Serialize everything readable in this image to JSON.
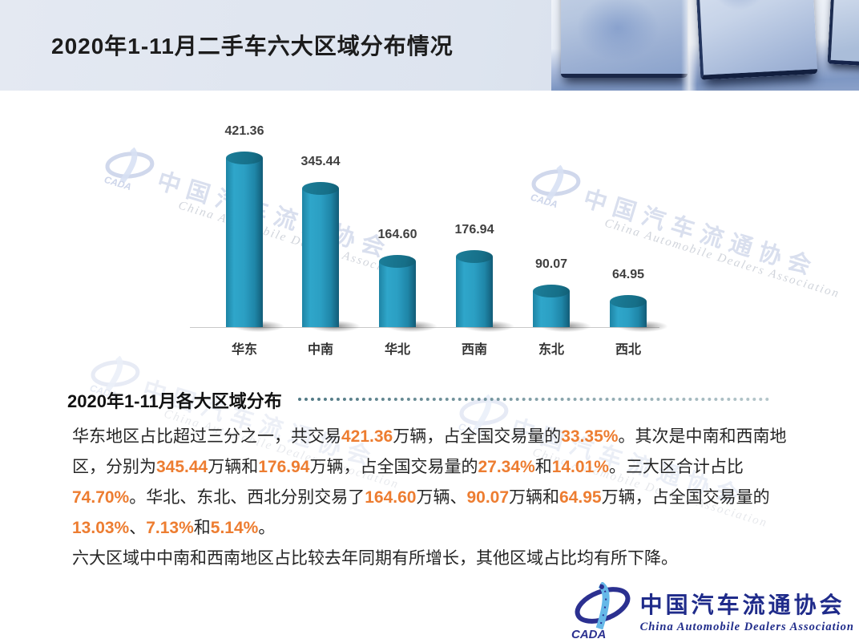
{
  "slide": {
    "title": "2020年1-11月二手车六大区域分布情况"
  },
  "chart_data": {
    "type": "bar",
    "categories": [
      "华东",
      "中南",
      "华北",
      "西南",
      "东北",
      "西北"
    ],
    "values": [
      421.36,
      345.44,
      164.6,
      176.94,
      90.07,
      64.95
    ],
    "value_labels": [
      "421.36",
      "345.44",
      "164.60",
      "176.94",
      "90.07",
      "64.95"
    ],
    "title": "",
    "xlabel": "",
    "ylabel": "",
    "unit": "万辆",
    "ylim": [
      0,
      450
    ],
    "grid": false,
    "legend_position": "none",
    "data_labels_shown": true,
    "bar_color": "#2596BA",
    "bar_style": "3d-cylinder"
  },
  "section": {
    "heading": "2020年1-11月各大区域分布"
  },
  "body_text": {
    "segments": [
      {
        "t": "华东地区占比超过三分之一，共交易",
        "h": false
      },
      {
        "t": "421.36",
        "h": true
      },
      {
        "t": "万辆，占全国交易量的",
        "h": false
      },
      {
        "t": "33.35%",
        "h": true
      },
      {
        "t": "。其次是中南和西南地区，分别为",
        "h": false
      },
      {
        "t": "345.44",
        "h": true
      },
      {
        "t": "万辆和",
        "h": false
      },
      {
        "t": "176.94",
        "h": true
      },
      {
        "t": "万辆，占全国交易量的",
        "h": false
      },
      {
        "t": "27.34%",
        "h": true
      },
      {
        "t": "和",
        "h": false
      },
      {
        "t": "14.01%",
        "h": true
      },
      {
        "t": "。三大区合计占比",
        "h": false
      },
      {
        "t": "74.70%",
        "h": true
      },
      {
        "t": "。华北、东北、西北分别交易了",
        "h": false
      },
      {
        "t": "164.60",
        "h": true
      },
      {
        "t": "万辆、",
        "h": false
      },
      {
        "t": "90.07",
        "h": true
      },
      {
        "t": "万辆和",
        "h": false
      },
      {
        "t": "64.95",
        "h": true
      },
      {
        "t": "万辆，占全国交易量的",
        "h": false
      },
      {
        "t": "13.03%",
        "h": true
      },
      {
        "t": "、",
        "h": false
      },
      {
        "t": "7.13%",
        "h": true
      },
      {
        "t": "和",
        "h": false
      },
      {
        "t": "5.14%",
        "h": true
      },
      {
        "t": "。",
        "h": false
      }
    ],
    "paragraph2": "六大区域中中南和西南地区占比较去年同期有所增长，其他区域占比均有所下降。"
  },
  "watermark": {
    "abbr": "CADA",
    "cn": "中国汽车流通协会",
    "en": "China Automobile Dealers Association"
  },
  "footer_logo": {
    "abbr": "CADA",
    "cn": "中国汽车流通协会",
    "en": "China Automobile Dealers Association"
  },
  "colors": {
    "accent_orange": "#ED7D31",
    "bar_teal": "#2596BA",
    "logo_navy": "#1F2B8A",
    "header_bg": "#DDE4EF"
  }
}
